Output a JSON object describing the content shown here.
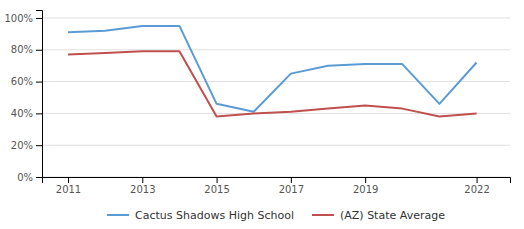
{
  "chart_data": {
    "type": "line",
    "x": [
      2011,
      2012,
      2013,
      2014,
      2015,
      2016,
      2017,
      2018,
      2019,
      2020,
      2021,
      2022
    ],
    "series": [
      {
        "name": "Cactus Shadows High School",
        "color": "#5b9bd5",
        "values": [
          0.91,
          0.92,
          0.95,
          0.95,
          0.46,
          0.41,
          0.65,
          0.7,
          0.71,
          0.71,
          0.46,
          0.72
        ]
      },
      {
        "name": "(AZ) State Average",
        "color": "#c0504d",
        "values": [
          0.77,
          0.78,
          0.79,
          0.79,
          0.38,
          0.4,
          0.41,
          0.43,
          0.45,
          0.43,
          0.38,
          0.4
        ]
      }
    ],
    "xlim": [
      2010.3,
      2022.9
    ],
    "xticks": [
      2011,
      2013,
      2015,
      2017,
      2019,
      2022
    ],
    "ylim": [
      0,
      1.05
    ],
    "yticks": [
      {
        "value": 0.0,
        "label": "0%"
      },
      {
        "value": 0.2,
        "label": "20%"
      },
      {
        "value": 0.4,
        "label": "40%"
      },
      {
        "value": 0.6,
        "label": "60%"
      },
      {
        "value": 0.8,
        "label": "80%"
      },
      {
        "value": 1.0,
        "label": "100%"
      }
    ],
    "grid": true,
    "legend": "bottom"
  }
}
